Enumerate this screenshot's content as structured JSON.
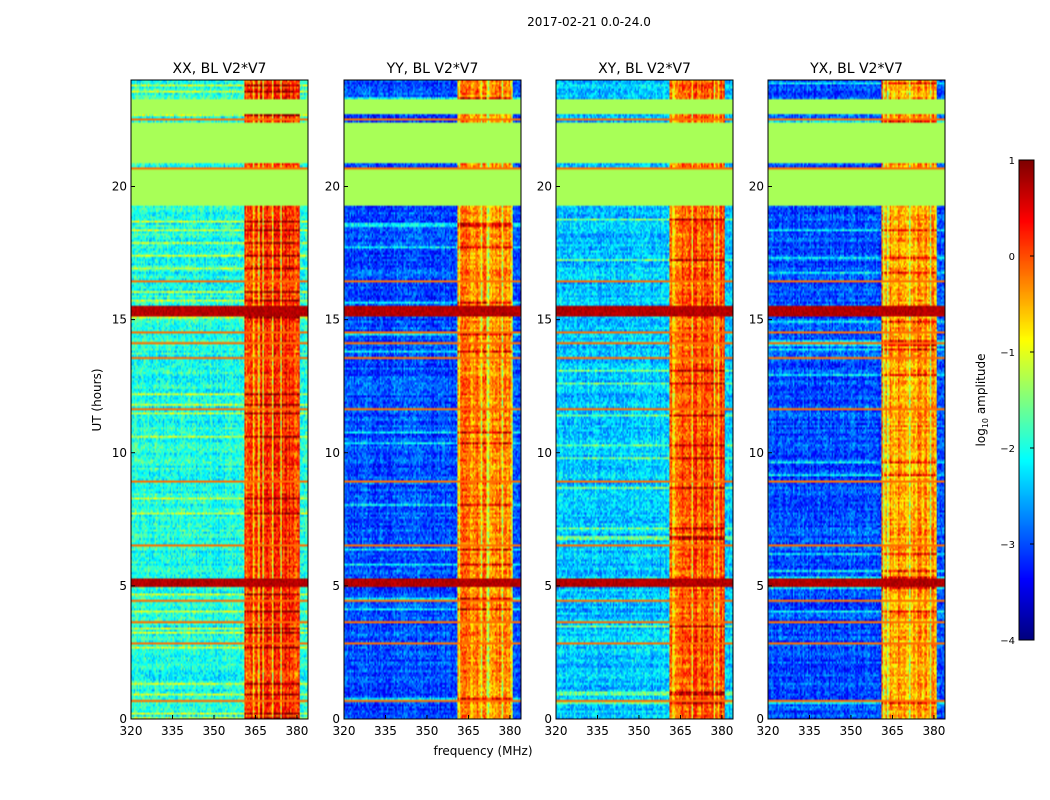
{
  "chart_data": {
    "type": "heatmap",
    "title": "2017-02-21 0.0-24.0",
    "xlabel": "frequency (MHz)",
    "ylabel": "UT (hours)",
    "xlim": [
      320,
      384
    ],
    "ylim": [
      0,
      24
    ],
    "xticks": [
      "320",
      "335",
      "350",
      "365",
      "380"
    ],
    "yticks": [
      "0",
      "5",
      "10",
      "15",
      "20"
    ],
    "colorbar": {
      "label": "log10 amplitude",
      "label_base": "log",
      "label_sub": "10",
      "label_rest": " amplitude",
      "range": [
        -4,
        1
      ],
      "ticks": [
        "−4",
        "−3",
        "−2",
        "−1",
        "0",
        "1"
      ]
    },
    "panels": [
      {
        "title": "XX, BL V2*V7",
        "background": -2.0,
        "rfi_band_level": 0.1
      },
      {
        "title": "YY, BL V2*V7",
        "background": -3.0,
        "rfi_band_level": -0.3
      },
      {
        "title": "XY, BL V2*V7",
        "background": -2.4,
        "rfi_band_level": 0.0
      },
      {
        "title": "YX, BL V2*V7",
        "background": -3.0,
        "rfi_band_level": -0.4
      }
    ],
    "masked_gaps_hours": [
      [
        19.3,
        20.6
      ],
      [
        20.9,
        22.4
      ],
      [
        22.7,
        23.3
      ]
    ],
    "masked_value": -1.3,
    "rfi_band_mhz": [
      361,
      381
    ],
    "strong_events_hours": [
      [
        4.95,
        5.25
      ],
      [
        15.1,
        15.5
      ]
    ],
    "horizontal_lines_hours": [
      0.7,
      2.9,
      3.7,
      4.5,
      6.6,
      9.0,
      11.7,
      13.6,
      14.2,
      14.6,
      16.5,
      20.75,
      22.55
    ]
  }
}
